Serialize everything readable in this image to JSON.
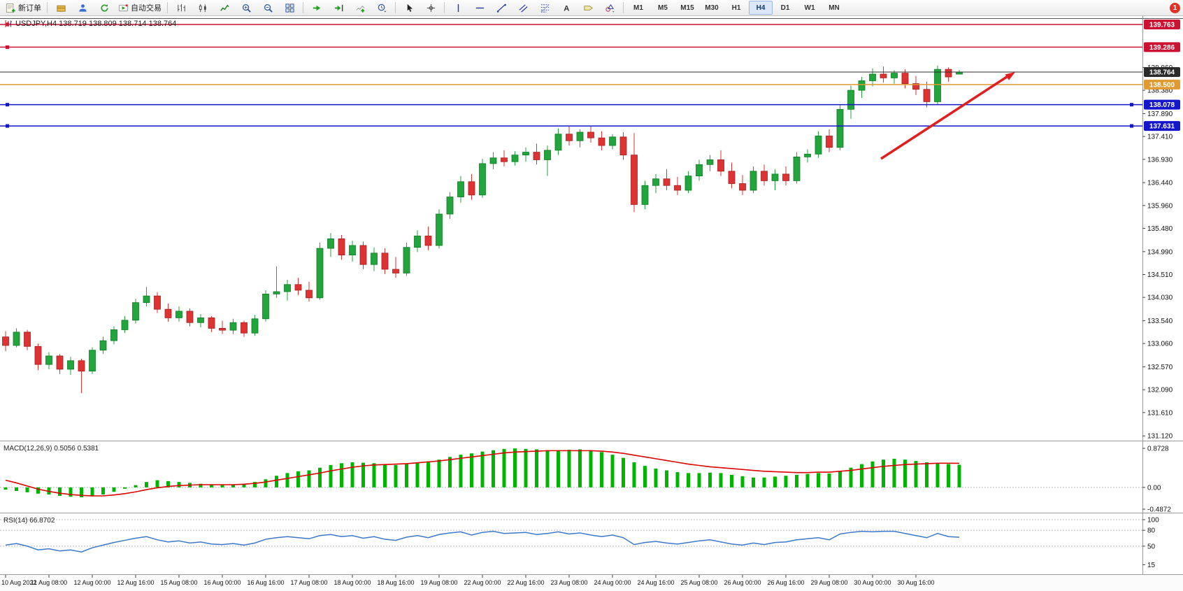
{
  "window": {
    "notification_count": "1"
  },
  "toolbar": {
    "new_order_label": "新订单",
    "autotrading_label": "自动交易",
    "timeframes": [
      "M1",
      "M5",
      "M15",
      "M30",
      "H1",
      "H4",
      "D1",
      "W1",
      "MN"
    ],
    "active_timeframe": "H4"
  },
  "chart": {
    "title": "USDJPY,H4 138.719 138.809 138.714 138.764",
    "symbol": "USDJPY",
    "timeframe": "H4",
    "ohlc_display": {
      "open": "138.719",
      "high": "138.809",
      "low": "138.714",
      "close": "138.764"
    },
    "price_axis_labels": [
      "138.860",
      "138.380",
      "137.890",
      "137.410",
      "136.930",
      "136.440",
      "135.960",
      "135.480",
      "134.990",
      "134.510",
      "134.030",
      "133.540",
      "133.060",
      "132.570",
      "132.090",
      "131.610",
      "131.120"
    ],
    "levels": [
      {
        "name": "resistance-1",
        "price": 139.763,
        "label": "139.763",
        "color": "#cc1133",
        "handles": "left"
      },
      {
        "name": "resistance-2",
        "price": 139.286,
        "label": "139.286",
        "color": "#cc1133",
        "handles": "left"
      },
      {
        "name": "current-price",
        "price": 138.764,
        "label": "138.764",
        "color": "#2b2b2b",
        "handles": "none"
      },
      {
        "name": "support-1",
        "price": 138.5,
        "label": "138.500",
        "color": "#e09a2f",
        "handles": "none"
      },
      {
        "name": "support-2",
        "price": 138.078,
        "label": "138.078",
        "color": "#1515cc",
        "handles": "left-right"
      },
      {
        "name": "support-3",
        "price": 137.631,
        "label": "137.631",
        "color": "#1515cc",
        "handles": "left-right"
      }
    ],
    "arrow": {
      "color": "#e02020",
      "direction": "up-right"
    }
  },
  "macd_panel": {
    "label": "MACD(12,26,9) 0.5056 0.5381",
    "scale_labels": [
      "0.8728",
      "0.00",
      "-0.4872"
    ]
  },
  "rsi_panel": {
    "label": "RSI(14) 66.8702",
    "scale_labels": [
      "100",
      "80",
      "50",
      "15"
    ]
  },
  "chart_data": {
    "type": "candlestick",
    "symbol": "USDJPY",
    "period": "H4",
    "price_range_visible": [
      131.05,
      139.88
    ],
    "label_every_n_bars": 4,
    "colors": {
      "up": "#21a53c",
      "down": "#dd3333",
      "macd_hist": "#00b400",
      "macd_signal": "#dd0000",
      "rsi_line": "#3c78c8"
    },
    "time_labels": [
      "10 Aug 2022",
      "11 Aug 08:00",
      "12 Aug 00:00",
      "12 Aug 16:00",
      "15 Aug 08:00",
      "16 Aug 00:00",
      "16 Aug 16:00",
      "17 Aug 08:00",
      "18 Aug 00:00",
      "18 Aug 16:00",
      "19 Aug 08:00",
      "22 Aug 00:00",
      "22 Aug 16:00",
      "23 Aug 08:00",
      "24 Aug 00:00",
      "24 Aug 16:00",
      "25 Aug 08:00",
      "26 Aug 00:00",
      "26 Aug 16:00",
      "29 Aug 08:00",
      "30 Aug 00:00",
      "30 Aug 16:00"
    ],
    "last_bar": {
      "open": 138.719,
      "high": 138.809,
      "low": 138.714,
      "close": 138.764
    },
    "candles": [
      [
        133.2,
        133.32,
        132.9,
        133.02
      ],
      [
        133.02,
        133.38,
        132.98,
        133.3
      ],
      [
        133.3,
        133.35,
        132.92,
        133.0
      ],
      [
        133.0,
        133.06,
        132.5,
        132.62
      ],
      [
        132.62,
        132.88,
        132.52,
        132.8
      ],
      [
        132.8,
        132.84,
        132.42,
        132.52
      ],
      [
        132.52,
        132.78,
        132.4,
        132.7
      ],
      [
        132.7,
        132.74,
        132.02,
        132.48
      ],
      [
        132.48,
        132.98,
        132.42,
        132.92
      ],
      [
        132.92,
        133.2,
        132.84,
        133.12
      ],
      [
        133.12,
        133.42,
        133.04,
        133.35
      ],
      [
        133.35,
        133.64,
        133.28,
        133.55
      ],
      [
        133.55,
        134.0,
        133.48,
        133.92
      ],
      [
        133.92,
        134.25,
        133.84,
        134.06
      ],
      [
        134.06,
        134.14,
        133.7,
        133.78
      ],
      [
        133.78,
        133.9,
        133.52,
        133.6
      ],
      [
        133.6,
        133.84,
        133.52,
        133.74
      ],
      [
        133.74,
        133.8,
        133.42,
        133.5
      ],
      [
        133.5,
        133.68,
        133.4,
        133.6
      ],
      [
        133.6,
        133.64,
        133.3,
        133.38
      ],
      [
        133.38,
        133.54,
        133.26,
        133.34
      ],
      [
        133.34,
        133.58,
        133.26,
        133.5
      ],
      [
        133.5,
        133.54,
        133.2,
        133.28
      ],
      [
        133.28,
        133.66,
        133.22,
        133.58
      ],
      [
        133.58,
        134.18,
        133.52,
        134.1
      ],
      [
        134.1,
        134.68,
        134.02,
        134.15
      ],
      [
        134.15,
        134.4,
        133.96,
        134.3
      ],
      [
        134.3,
        134.44,
        134.08,
        134.18
      ],
      [
        134.18,
        134.36,
        133.94,
        134.02
      ],
      [
        134.02,
        135.18,
        133.98,
        135.06
      ],
      [
        135.06,
        135.38,
        134.88,
        135.26
      ],
      [
        135.26,
        135.34,
        134.82,
        134.92
      ],
      [
        134.92,
        135.22,
        134.78,
        135.12
      ],
      [
        135.12,
        135.2,
        134.62,
        134.72
      ],
      [
        134.72,
        135.08,
        134.58,
        134.96
      ],
      [
        134.96,
        135.06,
        134.52,
        134.62
      ],
      [
        134.62,
        134.88,
        134.44,
        134.54
      ],
      [
        134.54,
        135.18,
        134.48,
        135.08
      ],
      [
        135.08,
        135.44,
        134.98,
        135.32
      ],
      [
        135.32,
        135.52,
        135.02,
        135.12
      ],
      [
        135.12,
        135.88,
        135.06,
        135.78
      ],
      [
        135.78,
        136.24,
        135.68,
        136.14
      ],
      [
        136.14,
        136.58,
        136.02,
        136.46
      ],
      [
        136.46,
        136.62,
        136.08,
        136.18
      ],
      [
        136.18,
        136.94,
        136.12,
        136.84
      ],
      [
        136.84,
        137.08,
        136.72,
        136.96
      ],
      [
        136.96,
        137.12,
        136.78,
        136.88
      ],
      [
        136.88,
        137.1,
        136.8,
        137.02
      ],
      [
        137.02,
        137.18,
        136.88,
        137.08
      ],
      [
        137.08,
        137.26,
        136.82,
        136.92
      ],
      [
        136.92,
        137.22,
        136.58,
        137.12
      ],
      [
        137.12,
        137.58,
        137.02,
        137.46
      ],
      [
        137.46,
        137.62,
        137.22,
        137.32
      ],
      [
        137.32,
        137.56,
        137.18,
        137.5
      ],
      [
        137.5,
        137.64,
        137.28,
        137.38
      ],
      [
        137.38,
        137.52,
        137.12,
        137.22
      ],
      [
        137.22,
        137.46,
        137.14,
        137.4
      ],
      [
        137.4,
        137.5,
        136.92,
        137.02
      ],
      [
        137.02,
        137.48,
        135.82,
        135.98
      ],
      [
        135.98,
        136.48,
        135.88,
        136.38
      ],
      [
        136.38,
        136.62,
        136.22,
        136.52
      ],
      [
        136.52,
        136.72,
        136.28,
        136.38
      ],
      [
        136.38,
        136.56,
        136.18,
        136.28
      ],
      [
        136.28,
        136.68,
        136.22,
        136.58
      ],
      [
        136.58,
        136.92,
        136.48,
        136.82
      ],
      [
        136.82,
        137.02,
        136.68,
        136.92
      ],
      [
        136.92,
        137.12,
        136.58,
        136.68
      ],
      [
        136.68,
        136.86,
        136.32,
        136.42
      ],
      [
        136.42,
        136.6,
        136.18,
        136.28
      ],
      [
        136.28,
        136.78,
        136.22,
        136.68
      ],
      [
        136.68,
        136.82,
        136.38,
        136.48
      ],
      [
        136.48,
        136.72,
        136.28,
        136.62
      ],
      [
        136.62,
        136.78,
        136.38,
        136.48
      ],
      [
        136.48,
        137.08,
        136.42,
        136.98
      ],
      [
        136.98,
        137.14,
        136.86,
        137.04
      ],
      [
        137.04,
        137.52,
        136.96,
        137.42
      ],
      [
        137.42,
        137.56,
        137.08,
        137.18
      ],
      [
        137.18,
        138.08,
        137.12,
        137.98
      ],
      [
        137.98,
        138.48,
        137.78,
        138.38
      ],
      [
        138.38,
        138.66,
        138.22,
        138.58
      ],
      [
        138.58,
        138.84,
        138.46,
        138.72
      ],
      [
        138.72,
        138.88,
        138.54,
        138.64
      ],
      [
        138.64,
        138.8,
        138.52,
        138.74
      ],
      [
        138.74,
        138.82,
        138.42,
        138.52
      ],
      [
        138.52,
        138.68,
        138.28,
        138.4
      ],
      [
        138.4,
        138.56,
        138.02,
        138.14
      ],
      [
        138.14,
        138.9,
        138.08,
        138.82
      ],
      [
        138.82,
        138.86,
        138.56,
        138.66
      ],
      [
        138.719,
        138.809,
        138.714,
        138.764
      ]
    ],
    "macd": {
      "current_values": [
        0.5056,
        0.5381
      ],
      "range": [
        -0.4872,
        0.8728
      ],
      "histogram": [
        -0.05,
        -0.08,
        -0.11,
        -0.14,
        -0.16,
        -0.19,
        -0.21,
        -0.22,
        -0.2,
        -0.16,
        -0.1,
        -0.03,
        0.05,
        0.12,
        0.16,
        0.14,
        0.12,
        0.1,
        0.08,
        0.06,
        0.05,
        0.06,
        0.08,
        0.12,
        0.18,
        0.26,
        0.32,
        0.36,
        0.38,
        0.44,
        0.5,
        0.54,
        0.56,
        0.55,
        0.54,
        0.52,
        0.5,
        0.52,
        0.55,
        0.58,
        0.62,
        0.68,
        0.73,
        0.76,
        0.8,
        0.83,
        0.86,
        0.87,
        0.86,
        0.85,
        0.83,
        0.83,
        0.84,
        0.85,
        0.83,
        0.79,
        0.73,
        0.66,
        0.56,
        0.48,
        0.42,
        0.38,
        0.34,
        0.32,
        0.32,
        0.33,
        0.32,
        0.28,
        0.25,
        0.22,
        0.22,
        0.24,
        0.26,
        0.28,
        0.3,
        0.32,
        0.31,
        0.36,
        0.44,
        0.52,
        0.58,
        0.62,
        0.64,
        0.62,
        0.59,
        0.56,
        0.54,
        0.52,
        0.5056
      ],
      "signal": [
        0.16,
        0.1,
        0.03,
        -0.04,
        -0.09,
        -0.13,
        -0.16,
        -0.18,
        -0.19,
        -0.19,
        -0.17,
        -0.14,
        -0.1,
        -0.05,
        -0.01,
        0.02,
        0.04,
        0.05,
        0.06,
        0.06,
        0.06,
        0.06,
        0.07,
        0.09,
        0.12,
        0.16,
        0.2,
        0.24,
        0.28,
        0.32,
        0.37,
        0.41,
        0.45,
        0.48,
        0.5,
        0.51,
        0.52,
        0.53,
        0.55,
        0.57,
        0.59,
        0.62,
        0.65,
        0.68,
        0.71,
        0.74,
        0.77,
        0.79,
        0.8,
        0.81,
        0.82,
        0.82,
        0.82,
        0.82,
        0.82,
        0.81,
        0.79,
        0.76,
        0.72,
        0.68,
        0.64,
        0.6,
        0.56,
        0.52,
        0.49,
        0.46,
        0.44,
        0.42,
        0.4,
        0.38,
        0.36,
        0.35,
        0.34,
        0.33,
        0.33,
        0.34,
        0.34,
        0.36,
        0.38,
        0.41,
        0.44,
        0.47,
        0.49,
        0.51,
        0.52,
        0.53,
        0.54,
        0.54,
        0.5381
      ]
    },
    "rsi": {
      "current": 66.8702,
      "levels": [
        80,
        50
      ],
      "values": [
        52,
        55,
        50,
        43,
        45,
        41,
        43,
        39,
        47,
        52,
        57,
        61,
        65,
        68,
        62,
        58,
        60,
        56,
        58,
        54,
        53,
        55,
        52,
        56,
        63,
        66,
        68,
        66,
        64,
        70,
        72,
        68,
        70,
        65,
        68,
        63,
        61,
        67,
        70,
        66,
        72,
        75,
        77,
        71,
        76,
        78,
        74,
        75,
        76,
        72,
        74,
        77,
        73,
        75,
        71,
        68,
        71,
        66,
        53,
        57,
        59,
        56,
        54,
        57,
        60,
        62,
        58,
        54,
        52,
        56,
        53,
        57,
        58,
        62,
        64,
        66,
        62,
        73,
        76,
        78,
        77,
        78,
        78,
        74,
        70,
        66,
        74,
        68,
        66.87
      ]
    }
  }
}
